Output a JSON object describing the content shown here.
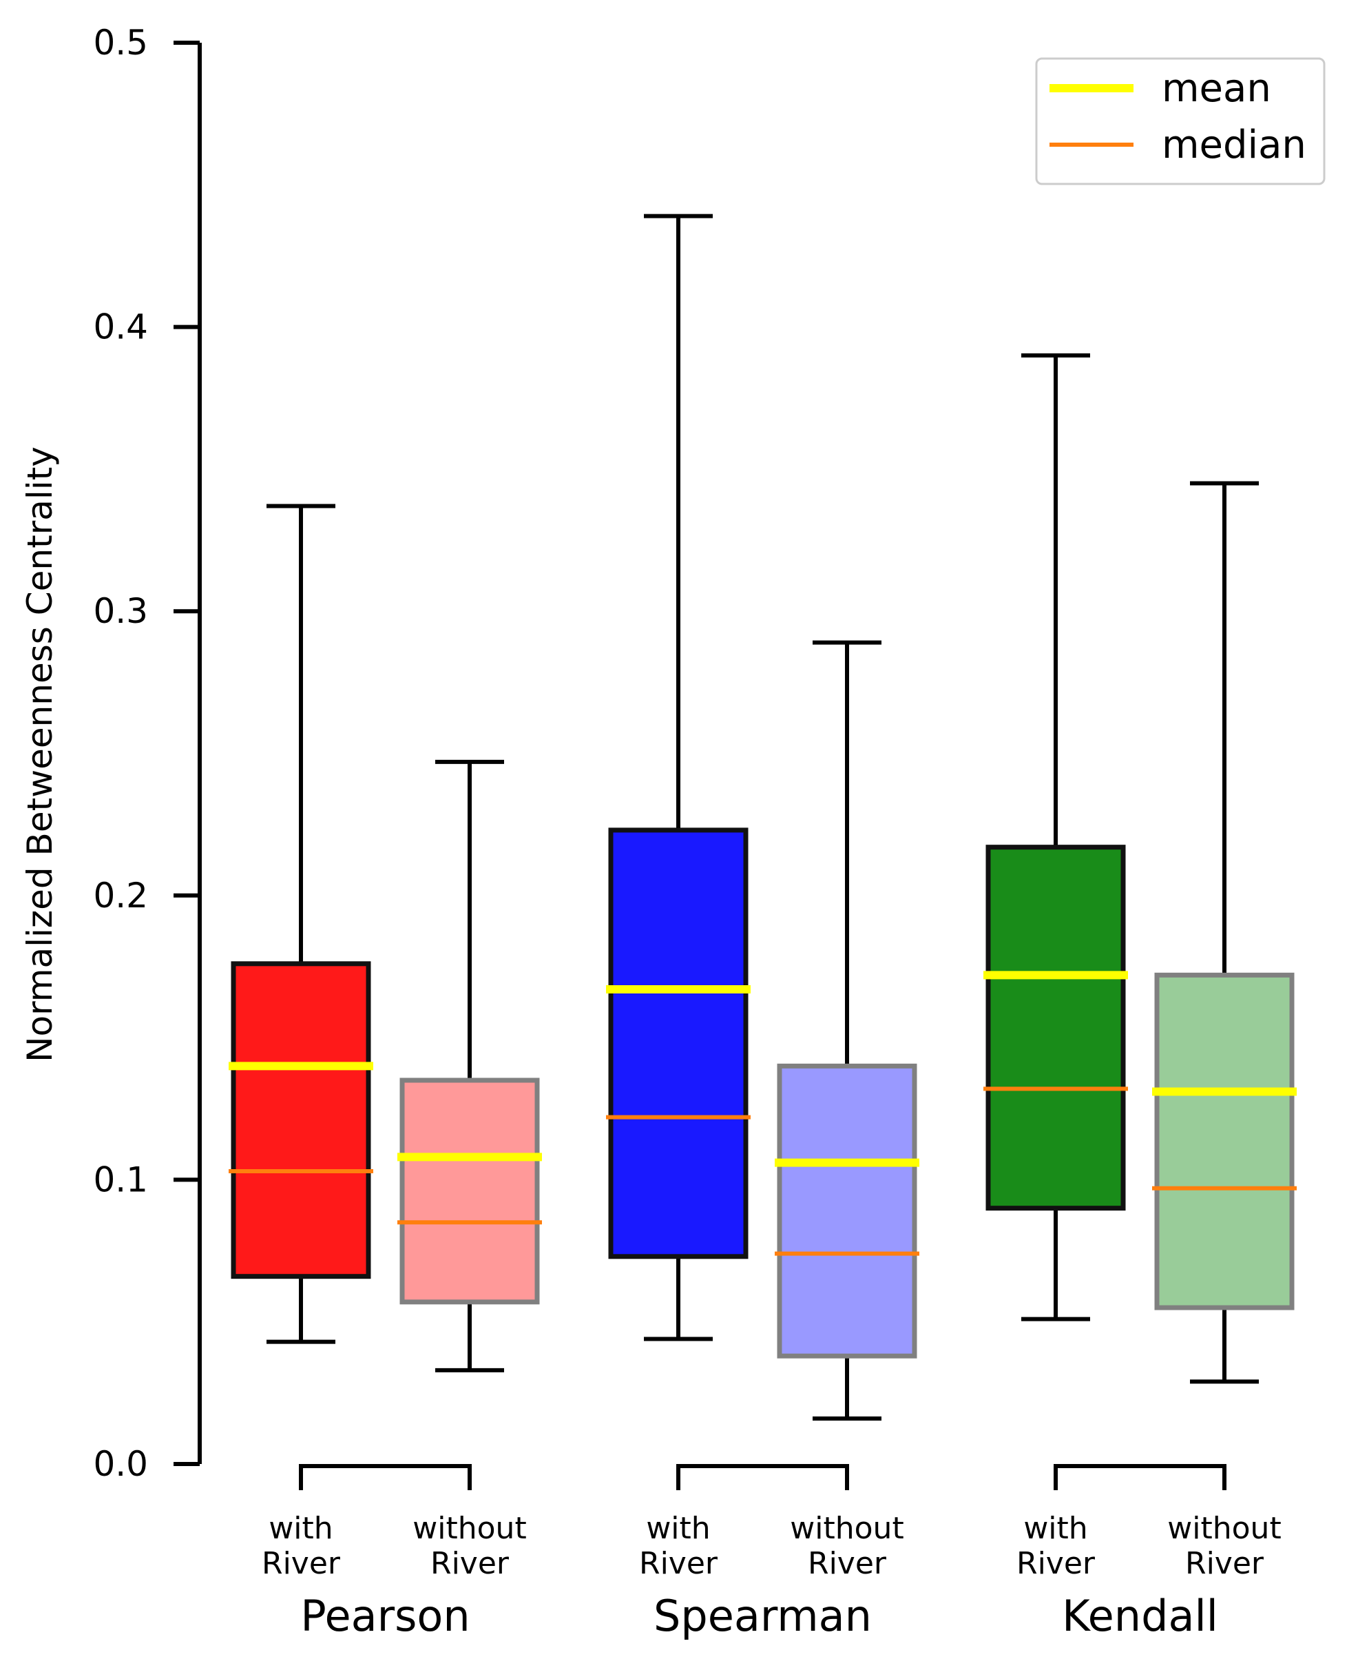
{
  "chart_data": {
    "type": "box",
    "title": "",
    "xlabel": "",
    "ylabel": "Normalized Betweenness Centrality",
    "ylim": [
      0,
      0.5
    ],
    "yticks": [
      "0.0",
      "0.1",
      "0.2",
      "0.3",
      "0.4",
      "0.5"
    ],
    "grid": false,
    "legend": {
      "position": "top-right",
      "entries": [
        {
          "label": "mean",
          "color": "#ffff00"
        },
        {
          "label": "median",
          "color": "#ff7f0e"
        }
      ]
    },
    "groups": [
      {
        "name": "Pearson",
        "boxes": [
          {
            "label_line1": "with",
            "label_line2": "River",
            "whisker_low": 0.043,
            "q1": 0.066,
            "median": 0.103,
            "mean": 0.14,
            "q3": 0.176,
            "whisker_high": 0.337,
            "fill": "#ff0000",
            "opacity": 0.9
          },
          {
            "label_line1": "without",
            "label_line2": "River",
            "whisker_low": 0.033,
            "q1": 0.057,
            "median": 0.085,
            "mean": 0.108,
            "q3": 0.135,
            "whisker_high": 0.247,
            "fill": "#ff0000",
            "opacity": 0.4
          }
        ]
      },
      {
        "name": "Spearman",
        "boxes": [
          {
            "label_line1": "with",
            "label_line2": "River",
            "whisker_low": 0.044,
            "q1": 0.073,
            "median": 0.122,
            "mean": 0.167,
            "q3": 0.223,
            "whisker_high": 0.439,
            "fill": "#0000ff",
            "opacity": 0.9
          },
          {
            "label_line1": "without",
            "label_line2": "River",
            "whisker_low": 0.016,
            "q1": 0.038,
            "median": 0.074,
            "mean": 0.106,
            "q3": 0.14,
            "whisker_high": 0.289,
            "fill": "#0000ff",
            "opacity": 0.4
          }
        ]
      },
      {
        "name": "Kendall",
        "boxes": [
          {
            "label_line1": "with",
            "label_line2": "River",
            "whisker_low": 0.051,
            "q1": 0.09,
            "median": 0.132,
            "mean": 0.172,
            "q3": 0.217,
            "whisker_high": 0.39,
            "fill": "#008000",
            "opacity": 0.9
          },
          {
            "label_line1": "without",
            "label_line2": "River",
            "whisker_low": 0.029,
            "q1": 0.055,
            "median": 0.097,
            "mean": 0.131,
            "q3": 0.172,
            "whisker_high": 0.345,
            "fill": "#008000",
            "opacity": 0.4
          }
        ]
      }
    ]
  }
}
